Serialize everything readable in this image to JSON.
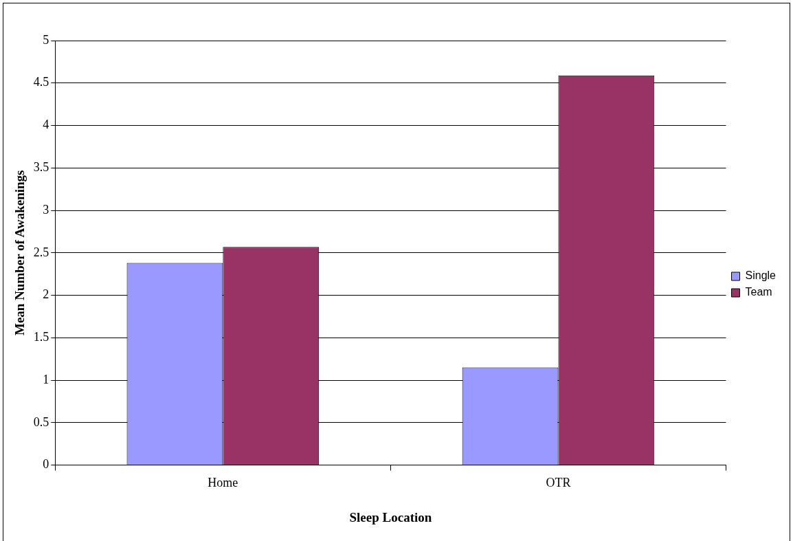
{
  "chart_data": {
    "type": "bar",
    "xlabel": "Sleep Location",
    "ylabel": "Mean Number of Awakenings",
    "categories": [
      "Home",
      "OTR"
    ],
    "series": [
      {
        "name": "Single",
        "color": "#9999ff",
        "values": [
          2.38,
          1.15
        ]
      },
      {
        "name": "Team",
        "color": "#993366",
        "values": [
          2.57,
          4.59
        ]
      }
    ],
    "ylim": [
      0,
      5
    ],
    "yticks": [
      0,
      0.5,
      1,
      1.5,
      2,
      2.5,
      3,
      3.5,
      4,
      4.5,
      5
    ],
    "grid": "y",
    "legend": "right"
  }
}
